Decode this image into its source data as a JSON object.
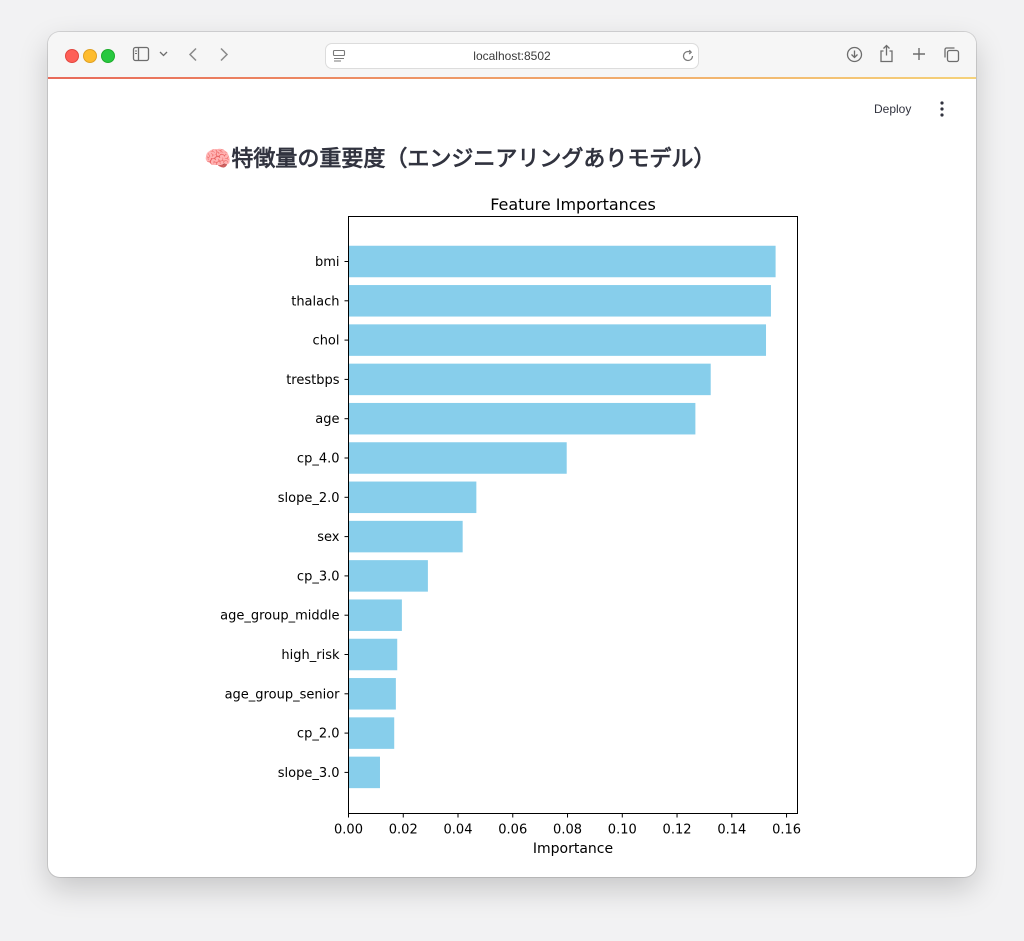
{
  "browser": {
    "address": "localhost:8502",
    "icons": [
      "sidebar-icon",
      "chevron-down-icon",
      "back-icon",
      "forward-icon",
      "page-icon",
      "reload-icon",
      "download-icon",
      "share-icon",
      "new-tab-icon",
      "tabs-overview-icon"
    ]
  },
  "app": {
    "deploy_label": "Deploy",
    "title_emoji": "🧠",
    "title_text": "特徴量の重要度（エンジニアリングありモデル）"
  },
  "chart_data": {
    "type": "bar",
    "orientation": "horizontal",
    "title": "Feature Importances",
    "xlabel": "Importance",
    "ylabel": "",
    "categories": [
      "bmi",
      "thalach",
      "chol",
      "trestbps",
      "age",
      "cp_4.0",
      "slope_2.0",
      "sex",
      "cp_3.0",
      "age_group_middle",
      "high_risk",
      "age_group_senior",
      "cp_2.0",
      "slope_3.0"
    ],
    "values": [
      0.156,
      0.1543,
      0.1525,
      0.1323,
      0.1267,
      0.0797,
      0.0467,
      0.0417,
      0.029,
      0.0195,
      0.0178,
      0.0173,
      0.0167,
      0.0115
    ],
    "xlim": [
      0,
      0.164
    ],
    "xticks": [
      "0.00",
      "0.02",
      "0.04",
      "0.06",
      "0.08",
      "0.10",
      "0.12",
      "0.14",
      "0.16"
    ],
    "color": "#87ceeb",
    "grid": false
  }
}
